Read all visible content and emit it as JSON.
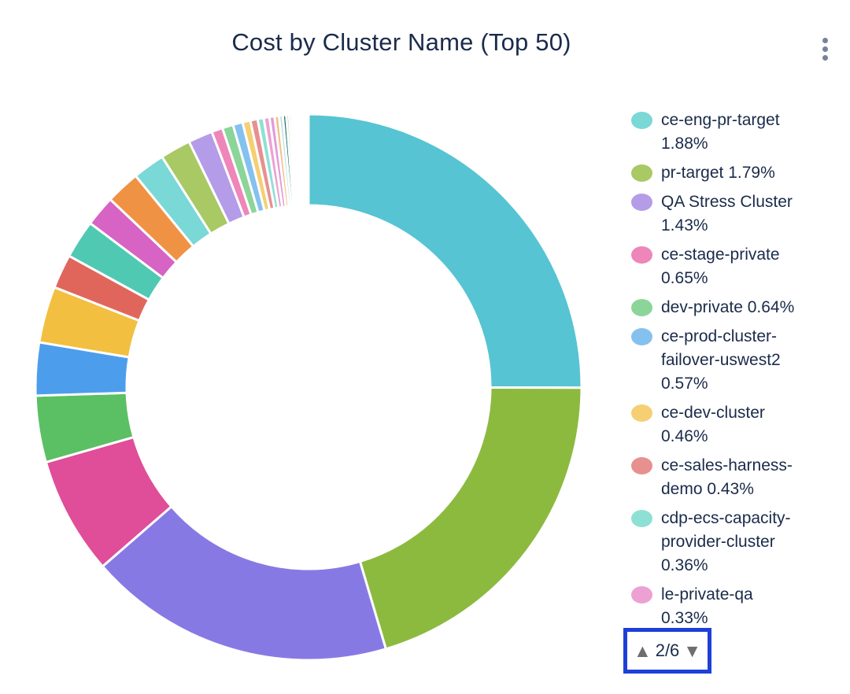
{
  "header": {
    "title": "Cost by Cluster Name (Top 50)"
  },
  "colors": {
    "title_text": "#1b2b4b",
    "legend_text": "#1a2b4a",
    "pager_focus_border": "#1e3fd8",
    "pager_arrow_gray": "#6e6e6e",
    "kebab_gray": "#76839b",
    "slice_border": "#ffffff"
  },
  "legend_pager": {
    "up_arrow": "▲",
    "label": "2/6",
    "down_arrow": "▼",
    "current_page": 2,
    "total_pages": 6
  },
  "chart_data": {
    "type": "pie",
    "title": "Cost by Cluster Name (Top 50)",
    "donut": true,
    "inner_radius_ratio": 0.665,
    "start_angle_deg": 0,
    "direction": "clockwise",
    "legend_position": "right",
    "legend_scroll_page": "2/6",
    "visible_legend_entries": [
      {
        "label": "ce-eng-pr-target",
        "percent": "1.88%",
        "color": "#7ad8d6"
      },
      {
        "label": "pr-target",
        "percent": "1.79%",
        "color": "#a8c963"
      },
      {
        "label": "QA Stress Cluster",
        "percent": "1.43%",
        "color": "#b49ce8"
      },
      {
        "label": "ce-stage-private",
        "percent": "0.65%",
        "color": "#ee86ba"
      },
      {
        "label": "dev-private",
        "percent": "0.64%",
        "color": "#8cd599"
      },
      {
        "label": "ce-prod-cluster-failover-uswest2",
        "percent": "0.57%",
        "color": "#85c1ef"
      },
      {
        "label": "ce-dev-cluster",
        "percent": "0.46%",
        "color": "#f6cf72"
      },
      {
        "label": "ce-sales-harness-demo",
        "percent": "0.43%",
        "color": "#e89090"
      },
      {
        "label": "cdp-ecs-capacity-provider-cluster",
        "percent": "0.36%",
        "color": "#8fe0d4"
      },
      {
        "label": "le-private-qa",
        "percent": "0.33%",
        "color": "#eda0d3"
      }
    ],
    "segments": [
      {
        "label": "",
        "value_pct": 24.8,
        "color": "#56c4d2",
        "legend_visible": false
      },
      {
        "label": "",
        "value_pct": 20.2,
        "color": "#8cba3f",
        "legend_visible": false
      },
      {
        "label": "",
        "value_pct": 18.0,
        "color": "#8779e4",
        "legend_visible": false
      },
      {
        "label": "",
        "value_pct": 6.9,
        "color": "#e04d99",
        "legend_visible": false
      },
      {
        "label": "",
        "value_pct": 3.9,
        "color": "#5bbf63",
        "legend_visible": false
      },
      {
        "label": "",
        "value_pct": 3.1,
        "color": "#4c9eec",
        "legend_visible": false
      },
      {
        "label": "",
        "value_pct": 3.3,
        "color": "#f2bf41",
        "legend_visible": false
      },
      {
        "label": "",
        "value_pct": 2.0,
        "color": "#e0665c",
        "legend_visible": false
      },
      {
        "label": "",
        "value_pct": 2.25,
        "color": "#4fc9b2",
        "legend_visible": false
      },
      {
        "label": "",
        "value_pct": 1.8,
        "color": "#d763c4",
        "legend_visible": false
      },
      {
        "label": "",
        "value_pct": 2.0,
        "color": "#f09244",
        "legend_visible": false
      },
      {
        "label": "ce-eng-pr-target",
        "value_pct": 1.88,
        "color": "#7ad8d6",
        "legend_visible": true
      },
      {
        "label": "pr-target",
        "value_pct": 1.79,
        "color": "#a8c963",
        "legend_visible": true
      },
      {
        "label": "QA Stress Cluster",
        "value_pct": 1.43,
        "color": "#b49ce8",
        "legend_visible": true
      },
      {
        "label": "ce-stage-private",
        "value_pct": 0.65,
        "color": "#ee86ba",
        "legend_visible": true
      },
      {
        "label": "dev-private",
        "value_pct": 0.64,
        "color": "#8cd599",
        "legend_visible": true
      },
      {
        "label": "ce-prod-cluster-failover-uswest2",
        "value_pct": 0.57,
        "color": "#85c1ef",
        "legend_visible": true
      },
      {
        "label": "ce-dev-cluster",
        "value_pct": 0.46,
        "color": "#f6cf72",
        "legend_visible": true
      },
      {
        "label": "ce-sales-harness-demo",
        "value_pct": 0.43,
        "color": "#e89090",
        "legend_visible": true
      },
      {
        "label": "cdp-ecs-capacity-provider-cluster",
        "value_pct": 0.36,
        "color": "#8fe0d4",
        "legend_visible": true
      },
      {
        "label": "le-private-qa",
        "value_pct": 0.33,
        "color": "#eda0d3",
        "legend_visible": true
      },
      {
        "label": "",
        "value_pct": 0.3,
        "color": "#e19bd9",
        "legend_visible": false
      },
      {
        "label": "",
        "value_pct": 0.26,
        "color": "#f6bd87",
        "legend_visible": false
      },
      {
        "label": "",
        "value_pct": 0.22,
        "color": "#b2e6e0",
        "legend_visible": false
      },
      {
        "label": "",
        "value_pct": 0.2,
        "color": "#1e6f66",
        "legend_visible": false
      },
      {
        "label": "",
        "value_pct": 0.17,
        "color": "#b7dcae",
        "legend_visible": false
      },
      {
        "label": "",
        "value_pct": 0.15,
        "color": "#cabdf0",
        "legend_visible": false
      },
      {
        "label": "",
        "value_pct": 0.13,
        "color": "#f2a9cd",
        "legend_visible": false
      },
      {
        "label": "",
        "value_pct": 0.11,
        "color": "#6fd4c6",
        "legend_visible": false
      },
      {
        "label": "",
        "value_pct": 0.1,
        "color": "#f3aa67",
        "legend_visible": false
      },
      {
        "label": "",
        "value_pct": 0.09,
        "color": "#2a7a72",
        "legend_visible": false
      },
      {
        "label": "",
        "value_pct": 0.08,
        "color": "#8d7de0",
        "legend_visible": false
      },
      {
        "label": "",
        "value_pct": 0.07,
        "color": "#dd66bd",
        "legend_visible": false
      },
      {
        "label": "",
        "value_pct": 0.05,
        "color": "#9fd8ef",
        "legend_visible": false
      },
      {
        "label": "",
        "value_pct": 0.04,
        "color": "#f8d98e",
        "legend_visible": false
      },
      {
        "label": "",
        "value_pct": 0.04,
        "color": "#eeaaa5",
        "legend_visible": false
      },
      {
        "label": "",
        "value_pct": 0.03,
        "color": "#a5e6d9",
        "legend_visible": false
      },
      {
        "label": "",
        "value_pct": 0.03,
        "color": "#f2b3dc",
        "legend_visible": false
      },
      {
        "label": "",
        "value_pct": 0.03,
        "color": "#8fd1f0",
        "legend_visible": false
      },
      {
        "label": "",
        "value_pct": 0.02,
        "color": "#c5e39b",
        "legend_visible": false
      },
      {
        "label": "",
        "value_pct": 0.02,
        "color": "#b9aef0",
        "legend_visible": false
      },
      {
        "label": "",
        "value_pct": 0.02,
        "color": "#f6c1d2",
        "legend_visible": false
      },
      {
        "label": "",
        "value_pct": 0.02,
        "color": "#7fd8cc",
        "legend_visible": false
      },
      {
        "label": "",
        "value_pct": 0.02,
        "color": "#f0b98c",
        "legend_visible": false
      },
      {
        "label": "",
        "value_pct": 0.02,
        "color": "#3a8a80",
        "legend_visible": false
      },
      {
        "label": "",
        "value_pct": 0.01,
        "color": "#a08ee6",
        "legend_visible": false
      },
      {
        "label": "",
        "value_pct": 0.01,
        "color": "#e68cc8",
        "legend_visible": false
      },
      {
        "label": "",
        "value_pct": 0.01,
        "color": "#bfe0f2",
        "legend_visible": false
      },
      {
        "label": "",
        "value_pct": 0.01,
        "color": "#f2d9a0",
        "legend_visible": false
      },
      {
        "label": "",
        "value_pct": 0.01,
        "color": "#e0b4ac",
        "legend_visible": false
      }
    ]
  }
}
